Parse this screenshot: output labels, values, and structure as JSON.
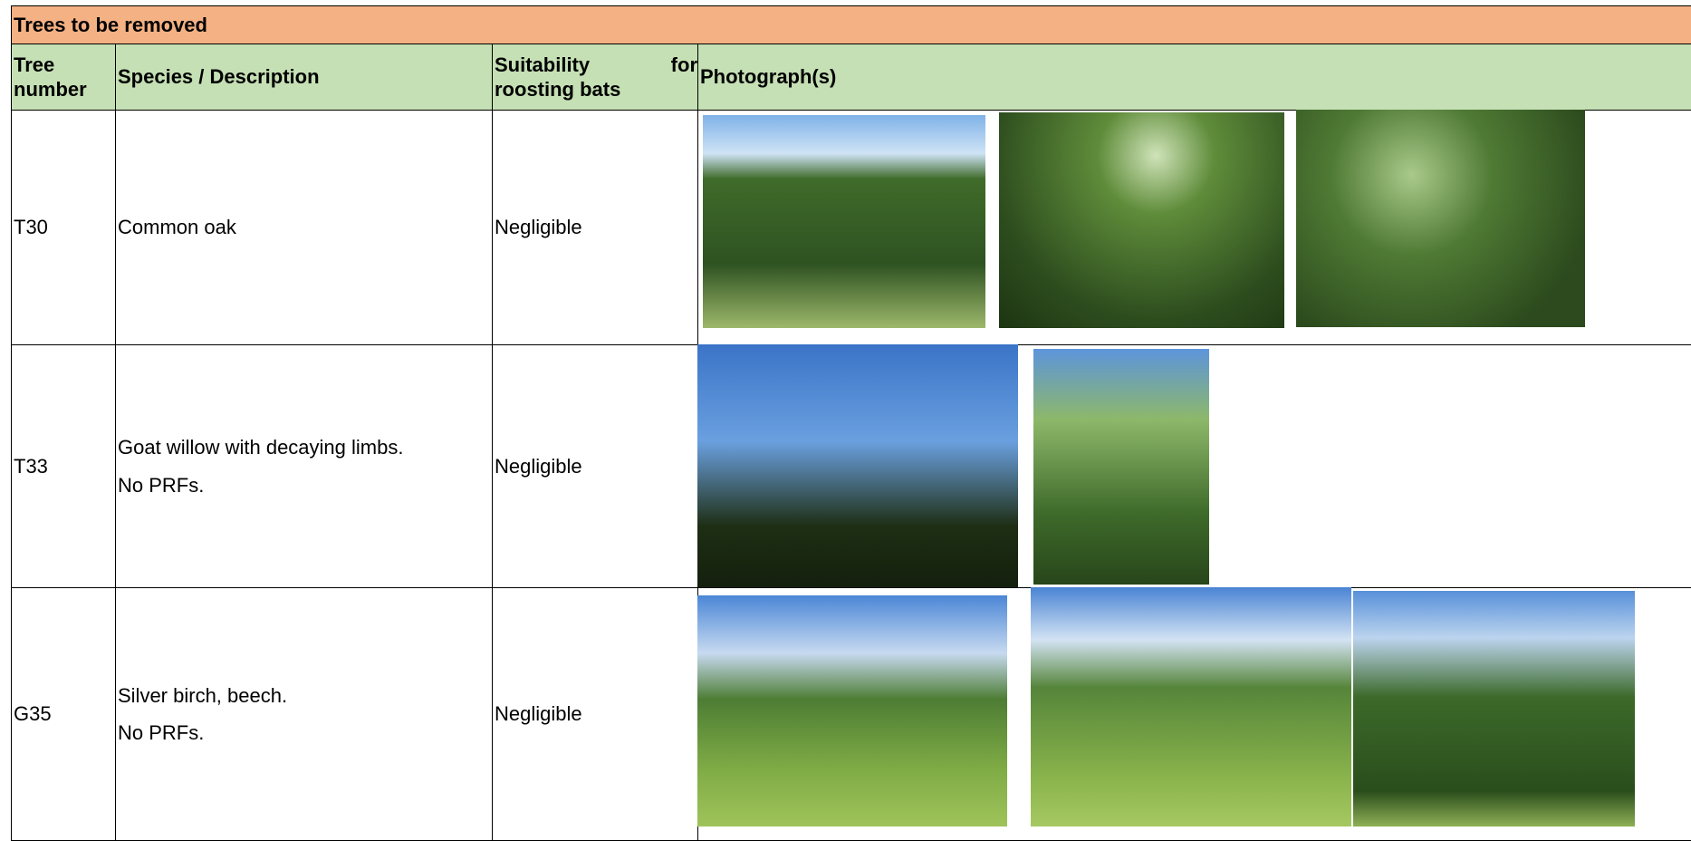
{
  "table": {
    "title": "Trees to be removed",
    "headers": [
      "Tree number",
      "Species / Description",
      "Suitability for roosting bats",
      "Photograph(s)"
    ],
    "rows": [
      {
        "number": "T30",
        "description": [
          "Common oak"
        ],
        "suitability": "Negligible"
      },
      {
        "number": "T33",
        "description": [
          "Goat willow with decaying limbs.",
          "No PRFs."
        ],
        "suitability": "Negligible"
      },
      {
        "number": "G35",
        "description": [
          "Silver birch, beech.",
          "No PRFs."
        ],
        "suitability": "Negligible"
      }
    ]
  }
}
